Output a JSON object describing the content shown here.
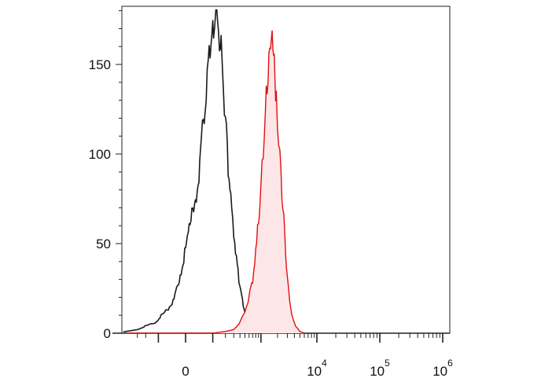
{
  "chart_data": {
    "type": "area",
    "title": "",
    "xlabel": "",
    "ylabel": "",
    "xscale": "biexponential",
    "ylim": [
      0,
      180
    ],
    "grid": false,
    "legend": "none",
    "y_ticks": [
      {
        "value": 0,
        "label": "0"
      },
      {
        "value": 50,
        "label": "50"
      },
      {
        "value": 100,
        "label": "100"
      },
      {
        "value": 150,
        "label": "150"
      }
    ],
    "x_ticks": [
      {
        "value": 0,
        "base": "0",
        "exp": ""
      },
      {
        "value": 10000,
        "base": "10",
        "exp": "4"
      },
      {
        "value": 100000,
        "base": "10",
        "exp": "5"
      },
      {
        "value": 1000000,
        "base": "10",
        "exp": "6"
      }
    ],
    "series": [
      {
        "role": "control",
        "color": "#1a1a1a",
        "fill": "none",
        "points": [
          [
            -1000,
            0
          ],
          [
            -500,
            1
          ],
          [
            -300,
            2
          ],
          [
            -200,
            4
          ],
          [
            -120,
            6
          ],
          [
            -80,
            10
          ],
          [
            -50,
            14
          ],
          [
            -30,
            18
          ],
          [
            -10,
            35
          ],
          [
            10,
            60
          ],
          [
            30,
            80
          ],
          [
            45,
            105
          ],
          [
            60,
            128
          ],
          [
            75,
            150
          ],
          [
            90,
            165
          ],
          [
            105,
            170
          ],
          [
            120,
            175
          ],
          [
            140,
            168
          ],
          [
            160,
            160
          ],
          [
            180,
            140
          ],
          [
            200,
            118
          ],
          [
            230,
            95
          ],
          [
            260,
            74
          ],
          [
            300,
            58
          ],
          [
            340,
            42
          ],
          [
            380,
            30
          ],
          [
            430,
            20
          ],
          [
            500,
            12
          ],
          [
            560,
            8
          ],
          [
            650,
            4
          ],
          [
            750,
            2
          ],
          [
            850,
            1
          ],
          [
            950,
            0
          ]
        ]
      },
      {
        "role": "stained",
        "color": "#e01010",
        "fill": "#fde6e8",
        "points": [
          [
            -500,
            0
          ],
          [
            100,
            0
          ],
          [
            200,
            1
          ],
          [
            300,
            2
          ],
          [
            400,
            6
          ],
          [
            500,
            12
          ],
          [
            600,
            20
          ],
          [
            700,
            30
          ],
          [
            800,
            45
          ],
          [
            900,
            62
          ],
          [
            1000,
            82
          ],
          [
            1100,
            105
          ],
          [
            1200,
            122
          ],
          [
            1300,
            138
          ],
          [
            1400,
            150
          ],
          [
            1500,
            160
          ],
          [
            1600,
            163
          ],
          [
            1700,
            155
          ],
          [
            1800,
            142
          ],
          [
            1900,
            128
          ],
          [
            2000,
            115
          ],
          [
            2200,
            98
          ],
          [
            2400,
            80
          ],
          [
            2600,
            62
          ],
          [
            2800,
            44
          ],
          [
            3000,
            30
          ],
          [
            3300,
            18
          ],
          [
            3600,
            10
          ],
          [
            4200,
            4
          ],
          [
            5000,
            1
          ],
          [
            6000,
            0
          ]
        ]
      }
    ]
  }
}
